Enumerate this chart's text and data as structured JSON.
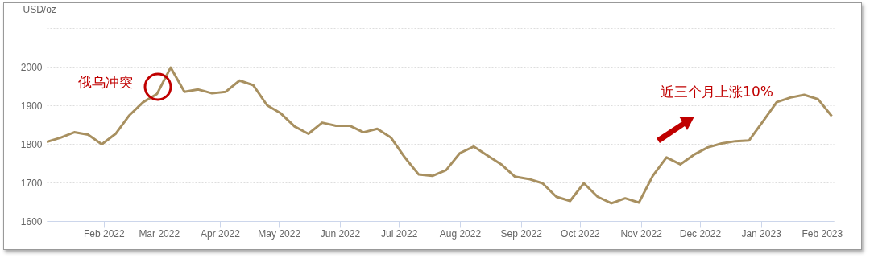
{
  "chart_data": {
    "type": "line",
    "ylabel": "USD/oz",
    "x": [
      "2022-01-03",
      "2022-01-10",
      "2022-01-17",
      "2022-01-24",
      "2022-01-31",
      "2022-02-07",
      "2022-02-14",
      "2022-02-21",
      "2022-02-28",
      "2022-03-07",
      "2022-03-14",
      "2022-03-21",
      "2022-03-28",
      "2022-04-04",
      "2022-04-11",
      "2022-04-18",
      "2022-04-25",
      "2022-05-02",
      "2022-05-09",
      "2022-05-16",
      "2022-05-23",
      "2022-05-30",
      "2022-06-06",
      "2022-06-13",
      "2022-06-20",
      "2022-06-27",
      "2022-07-04",
      "2022-07-11",
      "2022-07-18",
      "2022-07-25",
      "2022-08-01",
      "2022-08-08",
      "2022-08-15",
      "2022-08-22",
      "2022-08-29",
      "2022-09-05",
      "2022-09-12",
      "2022-09-19",
      "2022-09-26",
      "2022-10-03",
      "2022-10-10",
      "2022-10-17",
      "2022-10-24",
      "2022-10-31",
      "2022-11-07",
      "2022-11-14",
      "2022-11-21",
      "2022-11-28",
      "2022-12-05",
      "2022-12-12",
      "2022-12-19",
      "2022-12-26",
      "2023-01-02",
      "2023-01-09",
      "2023-01-16",
      "2023-01-23",
      "2023-01-30",
      "2023-02-06"
    ],
    "series": [
      {
        "color": "#a89060",
        "values": [
          1805,
          1816,
          1830,
          1824,
          1799,
          1826,
          1874,
          1908,
          1929,
          1998,
          1935,
          1941,
          1931,
          1935,
          1964,
          1952,
          1900,
          1879,
          1845,
          1826,
          1855,
          1847,
          1847,
          1830,
          1839,
          1816,
          1765,
          1721,
          1717,
          1732,
          1776,
          1793,
          1770,
          1747,
          1715,
          1709,
          1698,
          1663,
          1652,
          1698,
          1663,
          1646,
          1659,
          1648,
          1717,
          1765,
          1747,
          1772,
          1791,
          1801,
          1807,
          1809,
          1858,
          1908,
          1920,
          1927,
          1916,
          1872
        ]
      }
    ],
    "xlim": [
      "2022-01-03",
      "2023-02-07"
    ],
    "xticks": [
      {
        "value": "2022-02-01",
        "label": "Feb 2022"
      },
      {
        "value": "2022-03-01",
        "label": "Mar 2022"
      },
      {
        "value": "2022-04-01",
        "label": "Apr 2022"
      },
      {
        "value": "2022-05-01",
        "label": "May 2022"
      },
      {
        "value": "2022-06-01",
        "label": "Jun 2022"
      },
      {
        "value": "2022-07-01",
        "label": "Jul 2022"
      },
      {
        "value": "2022-08-01",
        "label": "Aug 2022"
      },
      {
        "value": "2022-09-01",
        "label": "Sep 2022"
      },
      {
        "value": "2022-10-01",
        "label": "Oct 2022"
      },
      {
        "value": "2022-11-01",
        "label": "Nov 2022"
      },
      {
        "value": "2022-12-01",
        "label": "Dec 2022"
      },
      {
        "value": "2023-01-01",
        "label": "Jan 2023"
      },
      {
        "value": "2023-02-01",
        "label": "Feb 2023"
      }
    ],
    "ylim": [
      1600,
      2100
    ],
    "yticks": [
      1600,
      1700,
      1800,
      1900,
      2000,
      {
        "value": 2100,
        "label": null
      }
    ],
    "grid": "y",
    "annotations": [
      {
        "text": "俄乌冲突",
        "x": "2022-03-01",
        "y": 1950
      },
      "近三个月上涨10%"
    ]
  }
}
